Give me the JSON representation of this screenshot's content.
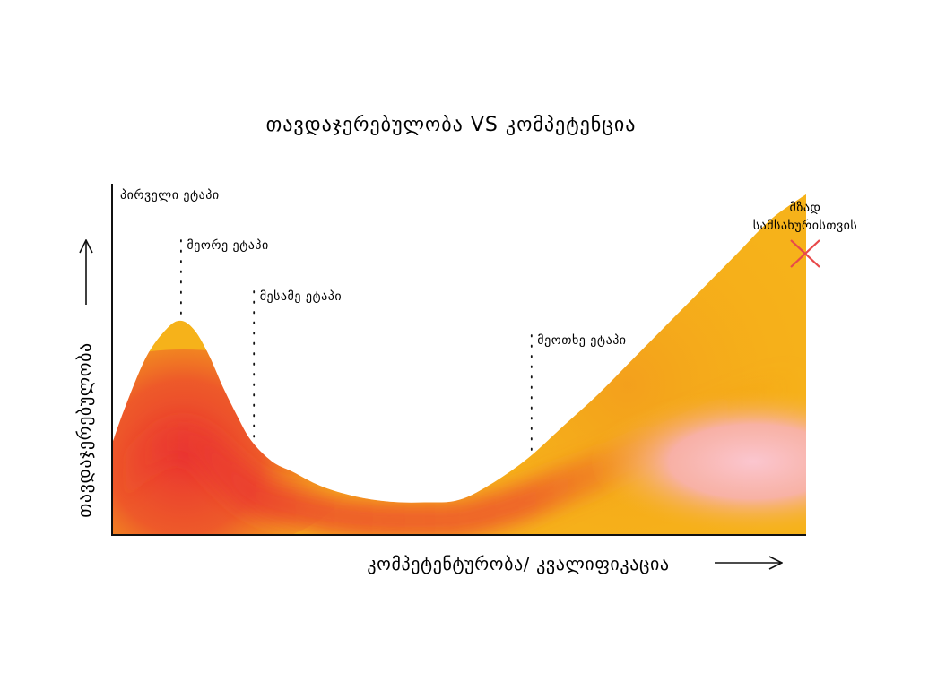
{
  "chart_data": {
    "type": "area",
    "title": "თავდაჯერებულობა VS კომპეტენცია",
    "xlabel": "კომპეტენტურობა/ კვალიფიკაცია",
    "ylabel": "თავდაჯერებულობა",
    "xlim": [
      0,
      100
    ],
    "ylim": [
      0,
      100
    ],
    "grid": false,
    "x": [
      0,
      2,
      5,
      8,
      10,
      12,
      14,
      16,
      18,
      20,
      23,
      26,
      30,
      35,
      40,
      45,
      50,
      55,
      60,
      65,
      70,
      75,
      80,
      85,
      90,
      95,
      100
    ],
    "y": [
      26,
      37,
      51,
      59,
      61,
      58,
      51,
      42,
      34,
      27,
      21,
      18,
      14,
      11,
      9.5,
      9.3,
      10,
      15,
      22,
      31,
      40,
      50,
      60,
      70,
      80,
      90,
      97
    ],
    "stages": [
      {
        "label": "პირველი ეტაპი",
        "x": 0
      },
      {
        "label": "მეორე ეტაპი",
        "x": 10
      },
      {
        "label": "მესამე ეტაპი",
        "x": 20.5
      },
      {
        "label": "მეოთხე ეტაპი",
        "x": 60.5
      }
    ],
    "end_marker": {
      "label_line1": "მზად",
      "label_line2": "სამსახურისთვის",
      "x": 100,
      "symbol": "cross"
    },
    "colors": {
      "orange": "#f6b21a",
      "deep_orange": "#f08a1e",
      "red": "#ea3530",
      "pink": "#f8b9c3",
      "cross": "#e8494a",
      "axis": "#111111"
    }
  }
}
